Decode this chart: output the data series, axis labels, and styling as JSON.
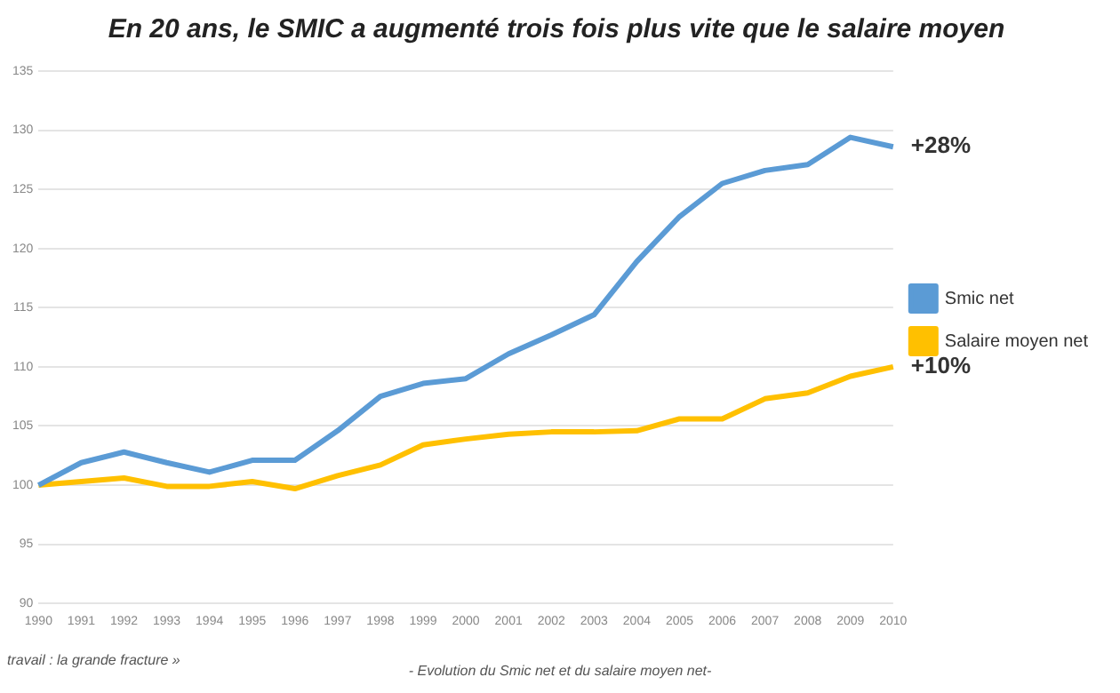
{
  "chart_data": {
    "type": "line",
    "title": "En 20 ans, le SMIC a augmenté trois fois plus vite que le salaire moyen",
    "categories": [
      "1990",
      "1991",
      "1992",
      "1993",
      "1994",
      "1995",
      "1996",
      "1997",
      "1998",
      "1999",
      "2000",
      "2001",
      "2002",
      "2003",
      "2004",
      "2005",
      "2006",
      "2007",
      "2008",
      "2009",
      "2010"
    ],
    "series": [
      {
        "name": "Smic net",
        "color": "#5b9bd5",
        "values": [
          100,
          101.9,
          102.8,
          101.9,
          101.1,
          102.1,
          102.1,
          104.6,
          107.5,
          108.6,
          109.0,
          111.1,
          112.7,
          114.4,
          118.9,
          122.7,
          125.5,
          126.6,
          127.1,
          129.4,
          128.6
        ]
      },
      {
        "name": "Salaire moyen net",
        "color": "#ffc000",
        "values": [
          100,
          100.3,
          100.6,
          99.9,
          99.9,
          100.3,
          99.7,
          100.8,
          101.7,
          103.4,
          103.9,
          104.3,
          104.5,
          104.5,
          104.6,
          105.6,
          105.6,
          107.3,
          107.8,
          109.2,
          110.0
        ]
      }
    ],
    "ylim": [
      90,
      135
    ],
    "yticks": [
      90,
      95,
      100,
      105,
      110,
      115,
      120,
      125,
      130,
      135
    ],
    "grid": "y",
    "legend": "right",
    "marker": "none",
    "line_style": "solid",
    "annotations": [
      {
        "text": "+28%",
        "x": "2010",
        "y": 128.6
      },
      {
        "text": "+10%",
        "x": "2010",
        "y": 110.0
      },
      "travail : la grande fracture »",
      "- Evolution du Smic net et du salaire moyen net-"
    ]
  }
}
